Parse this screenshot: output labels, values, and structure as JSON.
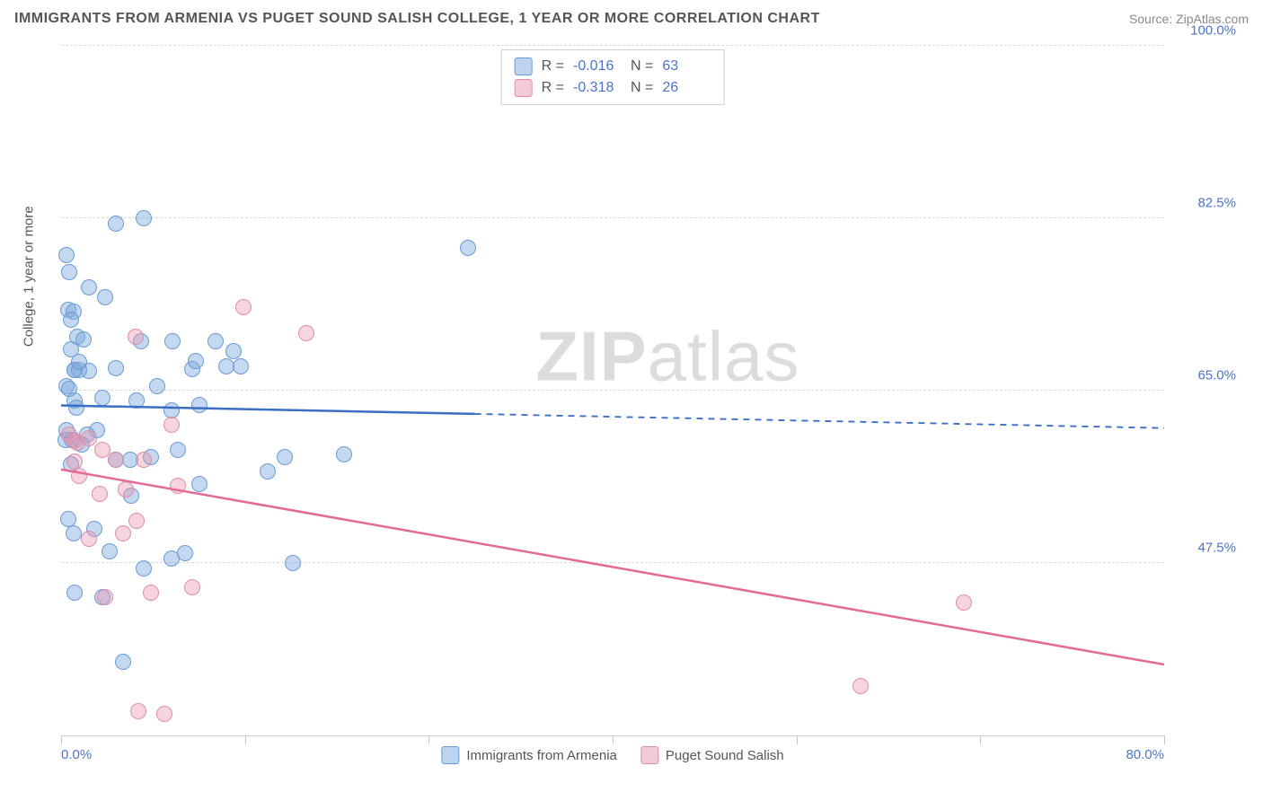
{
  "title": "IMMIGRANTS FROM ARMENIA VS PUGET SOUND SALISH COLLEGE, 1 YEAR OR MORE CORRELATION CHART",
  "source_label": "Source:",
  "source_name": "ZipAtlas.com",
  "y_axis_label": "College, 1 year or more",
  "watermark_bold": "ZIP",
  "watermark_rest": "atlas",
  "chart": {
    "type": "scatter",
    "xlim": [
      0,
      80
    ],
    "ylim": [
      30,
      100
    ],
    "y_ticks": [
      47.5,
      65.0,
      82.5,
      100.0
    ],
    "y_tick_labels": [
      "47.5%",
      "65.0%",
      "82.5%",
      "100.0%"
    ],
    "x_ticks": [
      0,
      13.33,
      26.67,
      40,
      53.33,
      66.67,
      80
    ],
    "x_tick_labels_shown": {
      "0": "0.0%",
      "80": "80.0%"
    },
    "background_color": "#ffffff",
    "grid_color": "#d8d8d8",
    "series": [
      {
        "name": "Immigrants from Armenia",
        "color_fill": "rgba(125,168,220,0.45)",
        "color_border": "#6a9bd6",
        "marker_size": 18,
        "R": "-0.016",
        "N": "63",
        "trend": {
          "y_at_x0": 63.5,
          "y_at_x80": 61.2,
          "solid_until_x": 30,
          "color": "#3b6fc4",
          "width": 2.5
        },
        "points": [
          [
            0.4,
            78.8
          ],
          [
            0.6,
            77.0
          ],
          [
            0.5,
            73.2
          ],
          [
            0.9,
            73.0
          ],
          [
            0.7,
            72.2
          ],
          [
            1.2,
            70.5
          ],
          [
            1.6,
            70.2
          ],
          [
            0.7,
            69.2
          ],
          [
            1.0,
            67.1
          ],
          [
            1.0,
            67.1
          ],
          [
            2.0,
            67.0
          ],
          [
            0.4,
            65.5
          ],
          [
            0.6,
            65.2
          ],
          [
            1.0,
            64.0
          ],
          [
            1.1,
            63.3
          ],
          [
            3.0,
            64.3
          ],
          [
            4.0,
            67.3
          ],
          [
            4.0,
            82.0
          ],
          [
            6.0,
            82.5
          ],
          [
            5.8,
            70.0
          ],
          [
            8.1,
            70.0
          ],
          [
            7.0,
            65.5
          ],
          [
            8.0,
            63.0
          ],
          [
            5.5,
            64.0
          ],
          [
            9.5,
            67.2
          ],
          [
            9.8,
            68.0
          ],
          [
            12.0,
            67.5
          ],
          [
            10.0,
            63.5
          ],
          [
            11.2,
            70.0
          ],
          [
            12.5,
            69.0
          ],
          [
            13.0,
            67.5
          ],
          [
            0.8,
            60.0
          ],
          [
            1.9,
            60.5
          ],
          [
            0.3,
            60.0
          ],
          [
            1.5,
            59.5
          ],
          [
            0.7,
            57.5
          ],
          [
            4.0,
            58.0
          ],
          [
            5.0,
            58.0
          ],
          [
            6.5,
            58.3
          ],
          [
            8.5,
            59.0
          ],
          [
            10.0,
            55.5
          ],
          [
            15.0,
            56.8
          ],
          [
            16.2,
            58.3
          ],
          [
            20.5,
            58.5
          ],
          [
            0.5,
            52.0
          ],
          [
            0.9,
            50.5
          ],
          [
            2.4,
            51.0
          ],
          [
            3.5,
            48.7
          ],
          [
            6.0,
            47.0
          ],
          [
            8.0,
            48.0
          ],
          [
            9.0,
            48.5
          ],
          [
            16.8,
            47.5
          ],
          [
            3.0,
            44.0
          ],
          [
            1.0,
            44.5
          ],
          [
            4.5,
            37.5
          ],
          [
            29.5,
            79.5
          ],
          [
            2.0,
            75.5
          ],
          [
            3.2,
            74.5
          ],
          [
            0.4,
            61.0
          ],
          [
            2.6,
            61.0
          ],
          [
            5.1,
            54.3
          ],
          [
            1.3,
            67.1
          ],
          [
            1.3,
            67.9
          ]
        ]
      },
      {
        "name": "Puget Sound Salish",
        "color_fill": "rgba(232,150,175,0.40)",
        "color_border": "#de8da8",
        "marker_size": 18,
        "R": "-0.318",
        "N": "26",
        "trend": {
          "y_at_x0": 57.0,
          "y_at_x80": 37.2,
          "solid_until_x": 80,
          "color": "#e36a94",
          "width": 2.5
        },
        "points": [
          [
            0.6,
            60.5
          ],
          [
            1.0,
            60.0
          ],
          [
            1.2,
            59.7
          ],
          [
            2.0,
            60.2
          ],
          [
            3.0,
            59.0
          ],
          [
            8.0,
            61.5
          ],
          [
            5.4,
            70.5
          ],
          [
            13.2,
            73.5
          ],
          [
            17.8,
            70.8
          ],
          [
            1.0,
            57.8
          ],
          [
            1.3,
            56.3
          ],
          [
            2.8,
            54.5
          ],
          [
            4.7,
            55.0
          ],
          [
            4.0,
            58.0
          ],
          [
            6.0,
            58.0
          ],
          [
            8.5,
            55.3
          ],
          [
            2.0,
            50.0
          ],
          [
            4.5,
            50.5
          ],
          [
            5.5,
            51.8
          ],
          [
            3.2,
            44.0
          ],
          [
            6.5,
            44.5
          ],
          [
            9.5,
            45.0
          ],
          [
            5.6,
            32.5
          ],
          [
            7.5,
            32.2
          ],
          [
            65.5,
            43.5
          ],
          [
            58.0,
            35.0
          ]
        ]
      }
    ]
  },
  "legend_top": [
    {
      "swatch": "blue",
      "R_label": "R =",
      "R_val": "-0.016",
      "N_label": "N =",
      "N_val": "63"
    },
    {
      "swatch": "pink",
      "R_label": "R =",
      "R_val": "-0.318",
      "N_label": "N =",
      "N_val": "26"
    }
  ],
  "legend_bottom": [
    {
      "swatch": "blue",
      "label": "Immigrants from Armenia"
    },
    {
      "swatch": "pink",
      "label": "Puget Sound Salish"
    }
  ]
}
